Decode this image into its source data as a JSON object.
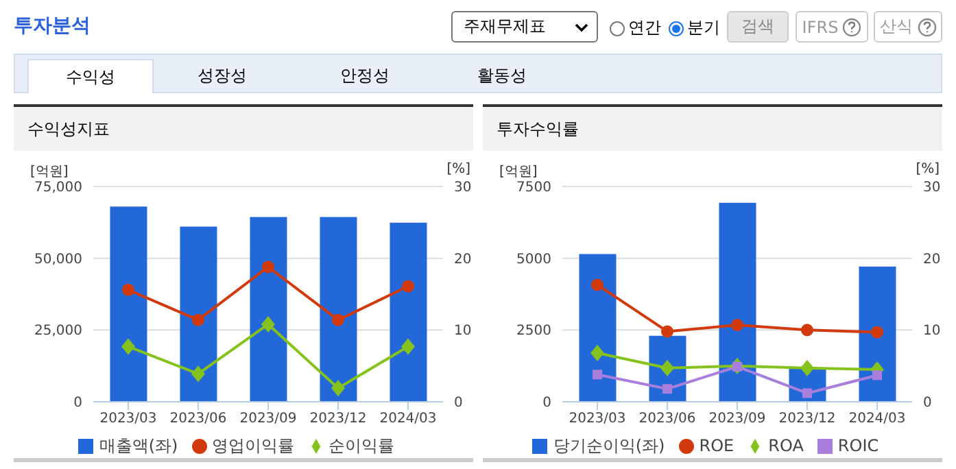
{
  "chart_data": [
    {
      "type": "other",
      "title": "투자분석",
      "annotations": [
        "주재무제표",
        "연간",
        "분기",
        "검색",
        "IFRS",
        "산식",
        "수익성",
        "성장성",
        "안정성",
        "활동성"
      ]
    },
    {
      "type": "bar",
      "title": "수익성지표",
      "ylabel": "[억원]",
      "y2label": "[%]",
      "categories": [
        "2023/03",
        "2023/06",
        "2023/09",
        "2023/12",
        "2024/03"
      ],
      "series": [
        {
          "name": "매출액(좌)",
          "type": "bar",
          "color": "#2268d9",
          "values": [
            68000,
            61000,
            64400,
            64400,
            62400
          ]
        },
        {
          "name": "영업이익률",
          "type": "line",
          "axis": "y2",
          "color": "#d03a0c",
          "marker": "circle",
          "values": [
            15.6,
            11.4,
            18.8,
            11.4,
            16.1
          ]
        },
        {
          "name": "순이익률",
          "type": "line",
          "axis": "y2",
          "color": "#86c21e",
          "marker": "diamond",
          "values": [
            7.7,
            3.9,
            10.8,
            1.9,
            7.7
          ]
        }
      ],
      "ylim": [
        0,
        75000
      ],
      "yticks": [
        0,
        {
          "value": 25000,
          "label": "25,000"
        },
        {
          "value": 50000,
          "label": "50,000"
        },
        {
          "value": 75000,
          "label": "75,000"
        }
      ],
      "y2lim": [
        0,
        30
      ],
      "y2ticks": [
        0,
        10,
        20,
        30
      ],
      "grid": "y",
      "legend": "bottom"
    },
    {
      "type": "bar",
      "title": "투자수익률",
      "ylabel": "[억원]",
      "y2label": "[%]",
      "categories": [
        "2023/03",
        "2023/06",
        "2023/09",
        "2023/12",
        "2024/03"
      ],
      "series": [
        {
          "name": "당기순이익(좌)",
          "type": "bar",
          "color": "#2268d9",
          "values": [
            5150,
            2300,
            6930,
            1160,
            4710
          ]
        },
        {
          "name": "ROE",
          "type": "line",
          "axis": "y2",
          "color": "#d03a0c",
          "marker": "circle",
          "values": [
            16.3,
            9.8,
            10.7,
            10.0,
            9.7
          ]
        },
        {
          "name": "ROA",
          "type": "line",
          "axis": "y2",
          "color": "#86c21e",
          "marker": "diamond",
          "values": [
            6.8,
            4.7,
            5.0,
            4.7,
            4.5
          ]
        },
        {
          "name": "ROIC",
          "type": "line",
          "axis": "y2",
          "color": "#a87fdc",
          "marker": "square",
          "values": [
            3.8,
            1.8,
            4.9,
            1.2,
            3.7
          ]
        }
      ],
      "ylim": [
        0,
        7500
      ],
      "yticks": [
        0,
        2500,
        5000,
        7500
      ],
      "y2lim": [
        0,
        30
      ],
      "y2ticks": [
        0,
        10,
        20,
        30
      ],
      "grid": "y",
      "legend": "bottom"
    }
  ]
}
